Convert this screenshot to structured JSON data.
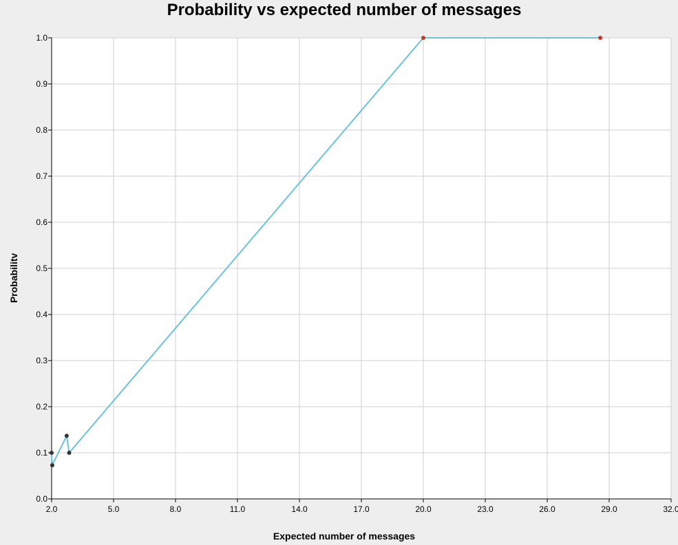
{
  "chart_data": {
    "type": "line",
    "title": "Probability vs expected number of messages",
    "xlabel": "Expected number of messages",
    "ylabel": "Probabilitv",
    "xlim": [
      2.0,
      32.0
    ],
    "ylim": [
      0.0,
      1.0
    ],
    "x_ticks": [
      "2.0",
      "5.0",
      "8.0",
      "11.0",
      "14.0",
      "17.0",
      "20.0",
      "23.0",
      "26.0",
      "29.0",
      "32.0"
    ],
    "y_ticks": [
      "0.0",
      "0.1",
      "0.2",
      "0.3",
      "0.4",
      "0.5",
      "0.6",
      "0.7",
      "0.8",
      "0.9",
      "1.0"
    ],
    "grid": true,
    "line_color": "#6bc2db",
    "series": [
      {
        "points": [
          {
            "x": 2.0,
            "y": 0.1,
            "marker_color": "#333333"
          },
          {
            "x": 2.03,
            "y": 0.073,
            "marker_color": "#333333"
          },
          {
            "x": 2.73,
            "y": 0.137,
            "marker_color": "#333333"
          },
          {
            "x": 2.85,
            "y": 0.1,
            "marker_color": "#333333"
          },
          {
            "x": 20.0,
            "y": 1.0,
            "marker_color": "#c0392b"
          },
          {
            "x": 28.57,
            "y": 1.0,
            "marker_color": "#c0392b"
          }
        ]
      }
    ]
  }
}
